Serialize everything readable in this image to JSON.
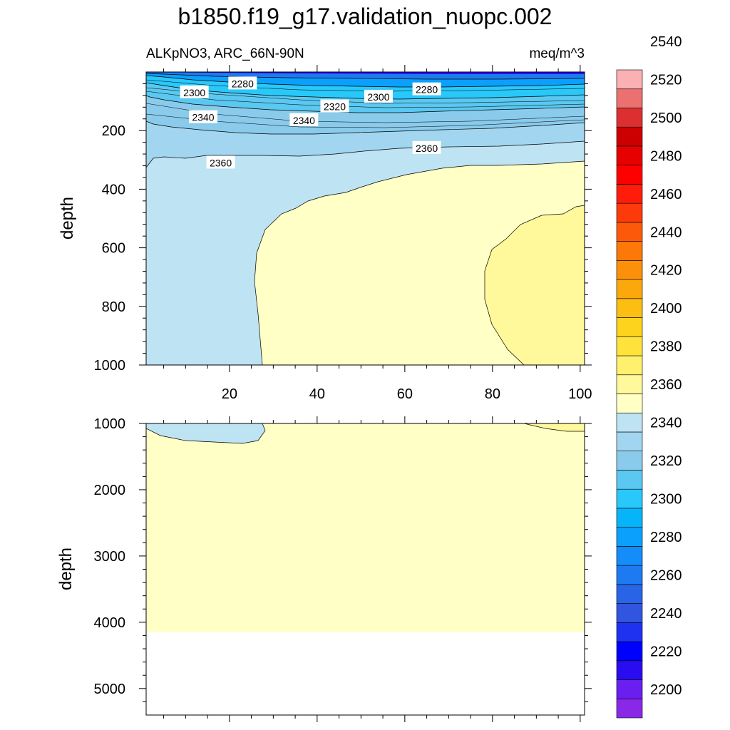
{
  "chart_data": {
    "type": "contour",
    "title": "b1850.f19_g17.validation_nuopc.002",
    "subtitle_left": "ALKpNO3, ARC_66N-90N",
    "subtitle_right": "meq/m^3",
    "panels": [
      {
        "name": "upper",
        "ylabel": "depth",
        "ylim": [
          0,
          1000
        ],
        "xlim": [
          1,
          101
        ],
        "x_ticks": [
          20,
          40,
          60,
          80,
          100
        ],
        "y_ticks": [
          200,
          400,
          600,
          800,
          1000
        ],
        "contour_labels": [
          {
            "text": "2280",
            "x": 23,
            "y": 40
          },
          {
            "text": "2300",
            "x": 12,
            "y": 70
          },
          {
            "text": "2280",
            "x": 65,
            "y": 60
          },
          {
            "text": "2300",
            "x": 54,
            "y": 85
          },
          {
            "text": "2320",
            "x": 44,
            "y": 118
          },
          {
            "text": "2340",
            "x": 14,
            "y": 155
          },
          {
            "text": "2340",
            "x": 37,
            "y": 165
          },
          {
            "text": "2360",
            "x": 65,
            "y": 260
          },
          {
            "text": "2360",
            "x": 18,
            "y": 310
          }
        ]
      },
      {
        "name": "lower",
        "ylabel": "depth",
        "ylim": [
          1000,
          5400
        ],
        "xlim": [
          1,
          101
        ],
        "y_ticks": [
          1000,
          2000,
          3000,
          4000,
          5000
        ],
        "data_bottom_depth": 4120
      }
    ],
    "colorbar": {
      "labels": [
        "2200",
        "2220",
        "2240",
        "2260",
        "2280",
        "2300",
        "2320",
        "2340",
        "2360",
        "2380",
        "2400",
        "2420",
        "2440",
        "2460",
        "2480",
        "2500",
        "2520",
        "2540"
      ],
      "colors": [
        "#8a28e8",
        "#6a1ef0",
        "#2a0cf0",
        "#0000ff",
        "#1e32f0",
        "#3255e0",
        "#2a64e6",
        "#1e7af0",
        "#148cfa",
        "#0aa0fc",
        "#06b4fa",
        "#28c8fa",
        "#5ac8f0",
        "#8acbec",
        "#a2d6f0",
        "#bee3f2",
        "#ffffc6",
        "#fff99c",
        "#fff06e",
        "#ffe33a",
        "#fdd31e",
        "#fcbe12",
        "#fca80c",
        "#fc900a",
        "#fc7808",
        "#fc5a0a",
        "#fc3a0a",
        "#ff1c0a",
        "#ff0000",
        "#e60000",
        "#cc0000",
        "#dc3030",
        "#ec7070",
        "#fbb0b4"
      ]
    }
  }
}
